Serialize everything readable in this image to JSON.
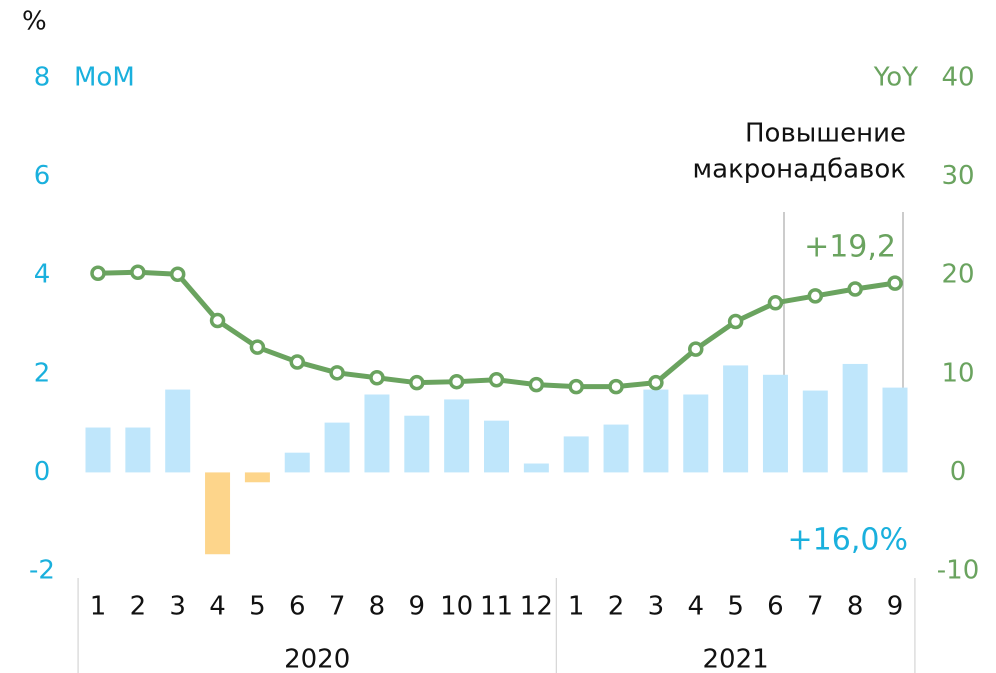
{
  "chart_data": {
    "type": "bar_line",
    "unit_label": "%",
    "groups": [
      {
        "name": "2020",
        "categories": [
          "1",
          "2",
          "3",
          "4",
          "5",
          "6",
          "7",
          "8",
          "9",
          "10",
          "11",
          "12"
        ]
      },
      {
        "name": "2021",
        "categories": [
          "1",
          "2",
          "3",
          "4",
          "5",
          "6",
          "7",
          "8",
          "9"
        ]
      }
    ],
    "series": [
      {
        "name": "MoM",
        "type": "bar",
        "axis": "y",
        "color": "#bfe6fb",
        "negative_color": "#fdd58b",
        "values": [
          0.91,
          0.91,
          1.68,
          -1.66,
          -0.2,
          0.4,
          1.01,
          1.58,
          1.15,
          1.48,
          1.05,
          0.18,
          0.73,
          0.97,
          1.68,
          1.58,
          2.17,
          1.98,
          1.66,
          2.2,
          1.72
        ]
      },
      {
        "name": "YoY",
        "type": "line",
        "axis": "y2",
        "color": "#6aa35f",
        "values": [
          20.2,
          20.3,
          20.1,
          15.4,
          12.7,
          11.2,
          10.1,
          9.6,
          9.1,
          9.2,
          9.4,
          8.9,
          8.7,
          8.7,
          9.1,
          12.5,
          15.3,
          17.2,
          17.9,
          18.6,
          19.2
        ]
      }
    ],
    "ylim": [
      -2,
      8
    ],
    "yticks": [
      -2,
      0,
      2,
      4,
      6,
      8
    ],
    "ytick_color": "#1ab0dd",
    "y2lim": [
      -10,
      40
    ],
    "y2ticks": [
      -10,
      0,
      10,
      20,
      30,
      40
    ],
    "y2tick_color": "#6aa35f",
    "annotations": {
      "policy": [
        "Повышение",
        "макронадбавок"
      ],
      "yoy_last": "+19,2",
      "mom_cumulative": "+16,0%"
    }
  }
}
